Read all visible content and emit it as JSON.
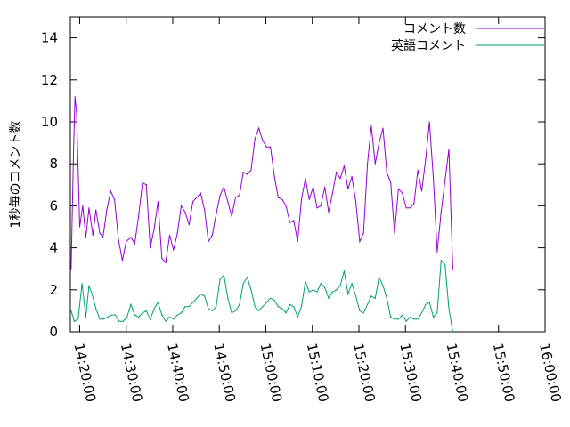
{
  "chart_data": {
    "type": "line",
    "title": "",
    "xlabel": "",
    "ylabel": "1秒毎のコメント数",
    "x_axis_type": "time",
    "xlim": [
      "14:18:00",
      "16:00:00"
    ],
    "ylim": [
      0,
      15
    ],
    "x_ticks": [
      "14:20:00",
      "14:30:00",
      "14:40:00",
      "14:50:00",
      "15:00:00",
      "15:10:00",
      "15:20:00",
      "15:30:00",
      "15:40:00",
      "15:50:00",
      "16:00:00"
    ],
    "y_ticks": [
      "0",
      "2",
      "4",
      "6",
      "8",
      "10",
      "12",
      "14"
    ],
    "grid": false,
    "legend_position": "top-right",
    "series": [
      {
        "name": "コメント数",
        "color": "#9400d3",
        "points": [
          [
            "14:18:10",
            3.0
          ],
          [
            "14:18:40",
            8.5
          ],
          [
            "14:19:00",
            11.2
          ],
          [
            "14:19:20",
            10.4
          ],
          [
            "14:20:00",
            5.0
          ],
          [
            "14:20:40",
            6.0
          ],
          [
            "14:21:20",
            4.5
          ],
          [
            "14:22:00",
            5.9
          ],
          [
            "14:22:50",
            4.6
          ],
          [
            "14:23:30",
            5.8
          ],
          [
            "14:24:20",
            4.7
          ],
          [
            "14:25:00",
            4.5
          ],
          [
            "14:25:50",
            5.8
          ],
          [
            "14:26:40",
            6.7
          ],
          [
            "14:27:30",
            6.3
          ],
          [
            "14:28:20",
            4.4
          ],
          [
            "14:29:10",
            3.4
          ],
          [
            "14:30:00",
            4.3
          ],
          [
            "14:31:00",
            4.5
          ],
          [
            "14:31:50",
            4.2
          ],
          [
            "14:32:40",
            5.5
          ],
          [
            "14:33:30",
            7.1
          ],
          [
            "14:34:20",
            7.0
          ],
          [
            "14:35:10",
            4.0
          ],
          [
            "14:36:00",
            4.9
          ],
          [
            "14:36:50",
            6.2
          ],
          [
            "14:37:40",
            3.5
          ],
          [
            "14:38:30",
            3.3
          ],
          [
            "14:39:20",
            4.6
          ],
          [
            "14:40:10",
            3.9
          ],
          [
            "14:41:00",
            4.7
          ],
          [
            "14:41:50",
            6.0
          ],
          [
            "14:42:40",
            5.7
          ],
          [
            "14:43:30",
            5.1
          ],
          [
            "14:44:20",
            6.2
          ],
          [
            "14:45:10",
            6.4
          ],
          [
            "14:46:00",
            6.6
          ],
          [
            "14:46:50",
            5.8
          ],
          [
            "14:47:40",
            4.3
          ],
          [
            "14:48:30",
            4.6
          ],
          [
            "14:49:20",
            5.6
          ],
          [
            "14:50:10",
            6.5
          ],
          [
            "14:51:00",
            6.9
          ],
          [
            "14:51:50",
            6.2
          ],
          [
            "14:52:40",
            5.5
          ],
          [
            "14:53:30",
            6.4
          ],
          [
            "14:54:20",
            6.5
          ],
          [
            "14:55:10",
            7.6
          ],
          [
            "14:56:00",
            7.5
          ],
          [
            "14:56:50",
            7.7
          ],
          [
            "14:57:40",
            9.2
          ],
          [
            "14:58:30",
            9.7
          ],
          [
            "14:59:20",
            9.1
          ],
          [
            "15:00:10",
            8.8
          ],
          [
            "15:01:00",
            8.8
          ],
          [
            "15:01:50",
            7.4
          ],
          [
            "15:02:40",
            6.4
          ],
          [
            "15:03:30",
            6.3
          ],
          [
            "15:04:20",
            6.0
          ],
          [
            "15:05:10",
            5.2
          ],
          [
            "15:06:00",
            5.3
          ],
          [
            "15:06:50",
            4.3
          ],
          [
            "15:07:40",
            6.3
          ],
          [
            "15:08:30",
            7.3
          ],
          [
            "15:09:20",
            6.3
          ],
          [
            "15:10:10",
            6.9
          ],
          [
            "15:11:00",
            5.9
          ],
          [
            "15:11:50",
            6.0
          ],
          [
            "15:12:40",
            6.9
          ],
          [
            "15:13:30",
            5.7
          ],
          [
            "15:14:20",
            6.6
          ],
          [
            "15:15:10",
            7.6
          ],
          [
            "15:16:00",
            7.3
          ],
          [
            "15:16:50",
            7.9
          ],
          [
            "15:17:40",
            6.8
          ],
          [
            "15:18:30",
            7.4
          ],
          [
            "15:19:20",
            6.2
          ],
          [
            "15:20:10",
            4.3
          ],
          [
            "15:21:00",
            4.7
          ],
          [
            "15:21:50",
            8.0
          ],
          [
            "15:22:40",
            9.8
          ],
          [
            "15:23:30",
            8.0
          ],
          [
            "15:24:20",
            9.0
          ],
          [
            "15:25:10",
            9.7
          ],
          [
            "15:26:00",
            7.6
          ],
          [
            "15:26:50",
            7.1
          ],
          [
            "15:27:40",
            4.7
          ],
          [
            "15:28:30",
            6.8
          ],
          [
            "15:29:20",
            6.6
          ],
          [
            "15:30:10",
            5.9
          ],
          [
            "15:31:00",
            5.9
          ],
          [
            "15:31:50",
            6.1
          ],
          [
            "15:32:40",
            7.7
          ],
          [
            "15:33:30",
            6.7
          ],
          [
            "15:34:20",
            8.2
          ],
          [
            "15:35:10",
            10.0
          ],
          [
            "15:36:00",
            7.3
          ],
          [
            "15:36:50",
            3.8
          ],
          [
            "15:37:40",
            5.7
          ],
          [
            "15:38:30",
            7.2
          ],
          [
            "15:39:20",
            8.7
          ],
          [
            "15:40:10",
            3.0
          ]
        ]
      },
      {
        "name": "英語コメント",
        "color": "#009e73",
        "points": [
          [
            "14:18:10",
            1.0
          ],
          [
            "14:18:50",
            0.5
          ],
          [
            "14:19:40",
            0.6
          ],
          [
            "14:20:30",
            2.3
          ],
          [
            "14:21:20",
            0.7
          ],
          [
            "14:22:00",
            2.2
          ],
          [
            "14:22:40",
            1.8
          ],
          [
            "14:23:30",
            1.1
          ],
          [
            "14:24:20",
            0.6
          ],
          [
            "14:25:10",
            0.6
          ],
          [
            "14:26:00",
            0.7
          ],
          [
            "14:26:50",
            0.8
          ],
          [
            "14:27:40",
            0.8
          ],
          [
            "14:28:30",
            0.5
          ],
          [
            "14:29:20",
            0.5
          ],
          [
            "14:30:10",
            0.7
          ],
          [
            "14:31:00",
            1.3
          ],
          [
            "14:31:50",
            0.8
          ],
          [
            "14:32:40",
            0.7
          ],
          [
            "14:33:30",
            0.9
          ],
          [
            "14:34:20",
            1.0
          ],
          [
            "14:35:10",
            0.6
          ],
          [
            "14:36:00",
            1.1
          ],
          [
            "14:36:50",
            1.4
          ],
          [
            "14:37:40",
            0.8
          ],
          [
            "14:38:30",
            0.5
          ],
          [
            "14:39:20",
            0.7
          ],
          [
            "14:40:10",
            0.6
          ],
          [
            "14:41:00",
            0.8
          ],
          [
            "14:41:50",
            0.9
          ],
          [
            "14:42:40",
            1.2
          ],
          [
            "14:43:30",
            1.2
          ],
          [
            "14:44:20",
            1.4
          ],
          [
            "14:45:10",
            1.6
          ],
          [
            "14:46:00",
            1.8
          ],
          [
            "14:46:50",
            1.7
          ],
          [
            "14:47:40",
            1.1
          ],
          [
            "14:48:30",
            1.0
          ],
          [
            "14:49:20",
            1.2
          ],
          [
            "14:50:10",
            2.5
          ],
          [
            "14:51:00",
            2.7
          ],
          [
            "14:51:50",
            1.6
          ],
          [
            "14:52:40",
            0.9
          ],
          [
            "14:53:30",
            1.0
          ],
          [
            "14:54:20",
            1.3
          ],
          [
            "14:55:10",
            2.3
          ],
          [
            "14:56:00",
            2.6
          ],
          [
            "14:56:50",
            2.0
          ],
          [
            "14:57:40",
            1.2
          ],
          [
            "14:58:30",
            1.0
          ],
          [
            "14:59:20",
            1.2
          ],
          [
            "15:00:10",
            1.4
          ],
          [
            "15:01:00",
            1.6
          ],
          [
            "15:01:50",
            1.5
          ],
          [
            "15:02:40",
            1.2
          ],
          [
            "15:03:30",
            1.1
          ],
          [
            "15:04:20",
            0.9
          ],
          [
            "15:05:10",
            1.3
          ],
          [
            "15:06:00",
            1.2
          ],
          [
            "15:06:50",
            0.7
          ],
          [
            "15:07:40",
            1.2
          ],
          [
            "15:08:30",
            2.4
          ],
          [
            "15:09:20",
            1.9
          ],
          [
            "15:10:10",
            2.0
          ],
          [
            "15:11:00",
            1.9
          ],
          [
            "15:11:50",
            2.3
          ],
          [
            "15:12:40",
            2.1
          ],
          [
            "15:13:30",
            1.6
          ],
          [
            "15:14:20",
            1.9
          ],
          [
            "15:15:10",
            2.0
          ],
          [
            "15:16:00",
            2.2
          ],
          [
            "15:16:50",
            2.9
          ],
          [
            "15:17:40",
            1.8
          ],
          [
            "15:18:30",
            2.3
          ],
          [
            "15:19:20",
            1.7
          ],
          [
            "15:20:10",
            1.0
          ],
          [
            "15:21:00",
            0.9
          ],
          [
            "15:21:50",
            1.3
          ],
          [
            "15:22:40",
            1.7
          ],
          [
            "15:23:30",
            1.6
          ],
          [
            "15:24:20",
            2.6
          ],
          [
            "15:25:10",
            2.2
          ],
          [
            "15:26:00",
            1.6
          ],
          [
            "15:26:50",
            0.7
          ],
          [
            "15:27:40",
            0.6
          ],
          [
            "15:28:30",
            0.6
          ],
          [
            "15:29:20",
            0.8
          ],
          [
            "15:30:10",
            0.5
          ],
          [
            "15:31:00",
            0.7
          ],
          [
            "15:31:50",
            0.6
          ],
          [
            "15:32:40",
            0.6
          ],
          [
            "15:33:30",
            0.9
          ],
          [
            "15:34:20",
            1.3
          ],
          [
            "15:35:10",
            1.4
          ],
          [
            "15:36:00",
            0.7
          ],
          [
            "15:36:50",
            0.9
          ],
          [
            "15:37:40",
            3.4
          ],
          [
            "15:38:30",
            3.2
          ],
          [
            "15:39:20",
            1.1
          ],
          [
            "15:40:10",
            0.0
          ]
        ]
      }
    ]
  }
}
